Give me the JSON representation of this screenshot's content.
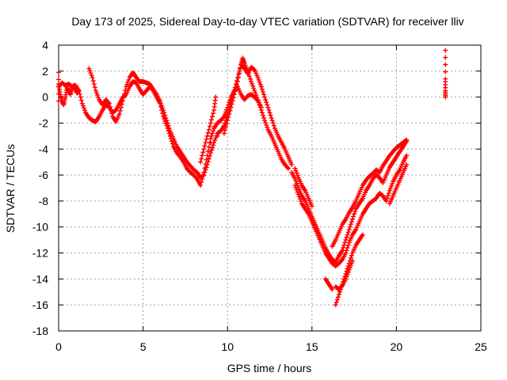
{
  "chart_data": {
    "type": "scatter",
    "title": "Day 173 of 2025, Sidereal Day-to-day VTEC variation (SDTVAR) for receiver lliv",
    "xlabel": "GPS time / hours",
    "ylabel": "SDTVAR / TECUs",
    "xlim": [
      0,
      25
    ],
    "ylim": [
      -18,
      4
    ],
    "xticks": [
      0,
      5,
      10,
      15,
      20,
      25
    ],
    "yticks": [
      -18,
      -16,
      -14,
      -12,
      -10,
      -8,
      -6,
      -4,
      -2,
      0,
      2,
      4
    ],
    "grid": true,
    "marker": "+",
    "color": "#ff0000",
    "series": [
      {
        "points": [
          [
            0.0,
            0.8
          ],
          [
            0.2,
            1.1
          ],
          [
            0.4,
            0.9
          ],
          [
            0.6,
            1.0
          ],
          [
            0.8,
            0.8
          ],
          [
            1.0,
            0.9
          ],
          [
            1.2,
            0.5
          ],
          [
            1.4,
            -0.5
          ],
          [
            1.6,
            -1.2
          ],
          [
            1.8,
            -1.6
          ],
          [
            2.0,
            -1.8
          ],
          [
            2.2,
            -1.9
          ],
          [
            2.4,
            -1.5
          ],
          [
            2.6,
            -1.0
          ],
          [
            2.8,
            -0.6
          ],
          [
            3.0,
            -0.8
          ],
          [
            3.2,
            -1.2
          ],
          [
            3.4,
            -1.0
          ],
          [
            3.6,
            -0.5
          ],
          [
            3.8,
            0.0
          ],
          [
            4.0,
            0.2
          ],
          [
            4.2,
            0.8
          ],
          [
            4.4,
            1.2
          ],
          [
            4.6,
            1.1
          ],
          [
            4.8,
            0.6
          ],
          [
            5.0,
            0.2
          ],
          [
            5.2,
            0.5
          ],
          [
            5.4,
            0.8
          ],
          [
            5.6,
            0.5
          ],
          [
            5.8,
            0.0
          ],
          [
            6.0,
            -0.5
          ],
          [
            6.2,
            -1.5
          ],
          [
            6.4,
            -2.2
          ],
          [
            6.6,
            -3.0
          ],
          [
            6.8,
            -3.8
          ],
          [
            7.0,
            -4.3
          ],
          [
            7.2,
            -4.6
          ],
          [
            7.4,
            -5.0
          ],
          [
            7.6,
            -5.5
          ],
          [
            7.8,
            -5.8
          ],
          [
            8.0,
            -6.0
          ],
          [
            8.2,
            -6.3
          ],
          [
            8.4,
            -6.8
          ],
          [
            8.6,
            -5.8
          ],
          [
            8.8,
            -4.5
          ],
          [
            9.0,
            -3.2
          ],
          [
            9.2,
            -2.4
          ],
          [
            9.4,
            -2.0
          ],
          [
            9.6,
            -1.8
          ],
          [
            9.8,
            -1.5
          ],
          [
            10.0,
            -0.8
          ],
          [
            10.2,
            0.0
          ],
          [
            10.4,
            0.5
          ],
          [
            10.6,
            0.8
          ],
          [
            10.8,
            0.2
          ],
          [
            11.0,
            -0.2
          ],
          [
            11.2,
            0.1
          ],
          [
            11.4,
            0.2
          ],
          [
            11.6,
            0.0
          ],
          [
            11.8,
            -0.3
          ],
          [
            12.0,
            -0.8
          ]
        ]
      },
      {
        "points": [
          [
            0.0,
            1.0
          ],
          [
            0.1,
            0.2
          ],
          [
            0.2,
            -0.3
          ],
          [
            0.3,
            -0.6
          ],
          [
            0.4,
            0.0
          ],
          [
            0.5,
            0.7
          ],
          [
            0.6,
            0.5
          ],
          [
            0.7,
            0.2
          ],
          [
            0.8,
            0.7
          ],
          [
            0.9,
            0.9
          ],
          [
            1.0,
            0.6
          ],
          [
            1.1,
            0.3
          ],
          [
            1.2,
            0.5
          ],
          [
            1.8,
            2.2
          ],
          [
            2.0,
            1.5
          ],
          [
            2.2,
            0.5
          ],
          [
            2.4,
            -0.2
          ],
          [
            2.6,
            -0.6
          ],
          [
            2.8,
            -0.2
          ],
          [
            3.0,
            -0.5
          ],
          [
            3.2,
            -1.5
          ],
          [
            3.4,
            -1.9
          ],
          [
            3.6,
            -1.3
          ],
          [
            3.8,
            -0.3
          ],
          [
            4.0,
            0.8
          ],
          [
            4.2,
            1.5
          ],
          [
            4.4,
            1.9
          ],
          [
            4.6,
            1.5
          ],
          [
            4.8,
            1.2
          ],
          [
            5.0,
            1.2
          ],
          [
            5.2,
            1.1
          ],
          [
            5.4,
            1.0
          ],
          [
            5.6,
            0.6
          ],
          [
            5.8,
            0.2
          ],
          [
            6.0,
            -0.3
          ],
          [
            6.2,
            -1.0
          ],
          [
            6.4,
            -1.8
          ],
          [
            6.6,
            -2.6
          ],
          [
            6.8,
            -3.2
          ],
          [
            7.0,
            -3.8
          ],
          [
            7.2,
            -4.2
          ],
          [
            7.4,
            -4.6
          ],
          [
            7.6,
            -5.0
          ],
          [
            7.8,
            -5.3
          ],
          [
            8.0,
            -5.6
          ],
          [
            8.2,
            -5.8
          ],
          [
            8.4,
            -6.2
          ],
          [
            8.6,
            -6.0
          ],
          [
            8.8,
            -5.2
          ],
          [
            9.0,
            -4.3
          ],
          [
            9.2,
            -3.5
          ],
          [
            9.4,
            -2.8
          ],
          [
            9.6,
            -2.6
          ],
          [
            9.8,
            -2.2
          ],
          [
            10.0,
            -1.4
          ],
          [
            10.2,
            -0.5
          ],
          [
            10.4,
            0.5
          ],
          [
            10.6,
            1.5
          ],
          [
            10.8,
            2.5
          ],
          [
            11.0,
            2.2
          ],
          [
            11.2,
            1.8
          ],
          [
            11.4,
            2.3
          ],
          [
            11.6,
            2.1
          ],
          [
            11.8,
            1.5
          ],
          [
            12.0,
            0.8
          ],
          [
            12.2,
            0.0
          ],
          [
            12.4,
            -0.8
          ],
          [
            12.6,
            -1.6
          ],
          [
            12.8,
            -2.4
          ],
          [
            13.0,
            -3.0
          ],
          [
            13.2,
            -3.5
          ],
          [
            13.4,
            -4.0
          ],
          [
            13.6,
            -4.6
          ],
          [
            13.8,
            -5.2
          ]
        ]
      },
      {
        "points": [
          [
            8.4,
            -5.0
          ],
          [
            8.6,
            -4.0
          ],
          [
            8.8,
            -3.0
          ],
          [
            9.0,
            -2.0
          ],
          [
            9.2,
            -1.0
          ],
          [
            9.3,
            0.0
          ],
          [
            9.0,
            -3.5
          ],
          [
            9.4,
            -3.0
          ],
          [
            9.8,
            -2.8
          ],
          [
            10.0,
            -1.8
          ],
          [
            10.2,
            -0.8
          ],
          [
            10.4,
            0.2
          ],
          [
            10.6,
            1.2
          ],
          [
            10.8,
            2.5
          ],
          [
            10.9,
            3.0
          ],
          [
            11.0,
            2.6
          ],
          [
            11.2,
            2.0
          ],
          [
            11.4,
            1.2
          ],
          [
            11.6,
            0.5
          ],
          [
            11.8,
            -0.2
          ],
          [
            12.0,
            -1.0
          ],
          [
            12.2,
            -1.8
          ],
          [
            12.4,
            -2.5
          ],
          [
            12.6,
            -3.0
          ],
          [
            12.8,
            -3.6
          ],
          [
            13.0,
            -4.2
          ],
          [
            13.2,
            -4.8
          ],
          [
            13.4,
            -5.2
          ],
          [
            13.6,
            -5.5
          ]
        ]
      },
      {
        "points": [
          [
            13.8,
            -5.8
          ],
          [
            14.0,
            -6.3
          ],
          [
            14.2,
            -7.0
          ],
          [
            14.4,
            -7.6
          ],
          [
            14.6,
            -8.0
          ],
          [
            14.8,
            -8.6
          ],
          [
            15.0,
            -9.2
          ],
          [
            15.2,
            -9.8
          ],
          [
            15.4,
            -10.4
          ],
          [
            15.6,
            -11.0
          ],
          [
            15.8,
            -11.6
          ],
          [
            16.0,
            -12.1
          ],
          [
            16.2,
            -12.5
          ],
          [
            16.4,
            -12.7
          ],
          [
            16.6,
            -12.2
          ],
          [
            16.8,
            -11.8
          ],
          [
            17.0,
            -11.0
          ],
          [
            17.2,
            -10.2
          ],
          [
            17.4,
            -9.4
          ],
          [
            17.6,
            -8.6
          ],
          [
            17.8,
            -8.2
          ],
          [
            18.0,
            -7.8
          ],
          [
            18.2,
            -7.2
          ],
          [
            18.4,
            -6.8
          ],
          [
            18.6,
            -6.3
          ],
          [
            18.8,
            -6.0
          ],
          [
            19.0,
            -6.2
          ],
          [
            19.2,
            -6.6
          ],
          [
            19.4,
            -6.0
          ],
          [
            19.6,
            -5.4
          ],
          [
            19.8,
            -5.0
          ],
          [
            20.0,
            -4.6
          ],
          [
            20.2,
            -4.2
          ],
          [
            20.4,
            -3.8
          ],
          [
            20.6,
            -3.4
          ]
        ]
      },
      {
        "points": [
          [
            14.0,
            -6.8
          ],
          [
            14.2,
            -7.5
          ],
          [
            14.4,
            -8.2
          ],
          [
            14.6,
            -8.6
          ],
          [
            14.8,
            -9.0
          ],
          [
            15.0,
            -9.6
          ],
          [
            15.2,
            -10.2
          ],
          [
            15.4,
            -10.8
          ],
          [
            15.6,
            -11.4
          ],
          [
            15.8,
            -12.0
          ],
          [
            16.0,
            -12.4
          ],
          [
            16.2,
            -12.8
          ],
          [
            16.4,
            -13.0
          ],
          [
            16.6,
            -12.8
          ],
          [
            16.8,
            -12.5
          ],
          [
            17.0,
            -12.0
          ],
          [
            17.2,
            -11.2
          ],
          [
            17.4,
            -10.6
          ],
          [
            17.6,
            -10.2
          ],
          [
            17.8,
            -9.6
          ],
          [
            18.0,
            -9.0
          ],
          [
            18.2,
            -8.6
          ],
          [
            18.4,
            -8.2
          ],
          [
            18.6,
            -8.0
          ],
          [
            18.8,
            -7.8
          ],
          [
            19.0,
            -7.4
          ],
          [
            19.2,
            -7.6
          ],
          [
            19.4,
            -8.0
          ],
          [
            19.6,
            -7.2
          ],
          [
            19.8,
            -6.5
          ],
          [
            20.0,
            -6.0
          ],
          [
            20.2,
            -5.6
          ],
          [
            20.4,
            -5.0
          ],
          [
            20.6,
            -4.5
          ]
        ]
      },
      {
        "points": [
          [
            14.0,
            -5.5
          ],
          [
            14.2,
            -6.2
          ],
          [
            14.4,
            -6.8
          ],
          [
            14.6,
            -7.2
          ],
          [
            14.8,
            -7.8
          ],
          [
            15.0,
            -8.4
          ],
          [
            16.2,
            -11.5
          ],
          [
            16.4,
            -11.0
          ],
          [
            16.6,
            -10.4
          ],
          [
            16.8,
            -9.8
          ],
          [
            17.0,
            -9.4
          ],
          [
            17.2,
            -8.9
          ],
          [
            17.4,
            -8.5
          ],
          [
            17.6,
            -8.0
          ],
          [
            17.8,
            -7.4
          ],
          [
            18.0,
            -6.8
          ],
          [
            18.2,
            -6.4
          ],
          [
            18.4,
            -6.1
          ],
          [
            18.6,
            -5.9
          ],
          [
            18.8,
            -5.6
          ],
          [
            19.0,
            -5.8
          ],
          [
            19.2,
            -5.3
          ],
          [
            19.4,
            -4.9
          ],
          [
            19.6,
            -4.5
          ],
          [
            19.8,
            -4.2
          ],
          [
            20.0,
            -3.9
          ],
          [
            20.2,
            -3.7
          ],
          [
            20.4,
            -3.5
          ],
          [
            20.6,
            -3.3
          ]
        ]
      },
      {
        "points": [
          [
            16.4,
            -16.0
          ],
          [
            16.6,
            -15.2
          ],
          [
            16.8,
            -14.4
          ],
          [
            17.0,
            -13.6
          ],
          [
            17.2,
            -12.8
          ],
          [
            17.4,
            -12.0
          ],
          [
            17.6,
            -11.4
          ],
          [
            17.8,
            -11.0
          ],
          [
            18.0,
            -10.6
          ],
          [
            16.4,
            -14.6
          ],
          [
            16.6,
            -14.8
          ],
          [
            16.8,
            -14.5
          ],
          [
            17.0,
            -14.0
          ],
          [
            17.2,
            -13.3
          ],
          [
            17.4,
            -12.6
          ],
          [
            15.8,
            -14.0
          ],
          [
            16.0,
            -14.4
          ],
          [
            16.2,
            -14.8
          ],
          [
            19.6,
            -8.2
          ],
          [
            19.8,
            -7.6
          ],
          [
            20.0,
            -7.0
          ],
          [
            20.2,
            -6.4
          ],
          [
            20.4,
            -5.8
          ],
          [
            20.6,
            -5.2
          ]
        ]
      },
      {
        "points": [
          [
            0.0,
            1.9
          ],
          [
            0.0,
            -0.3
          ],
          [
            22.9,
            3.6
          ],
          [
            22.9,
            1.4
          ],
          [
            22.9,
            0.5
          ],
          [
            22.9,
            0.0
          ]
        ]
      }
    ]
  }
}
